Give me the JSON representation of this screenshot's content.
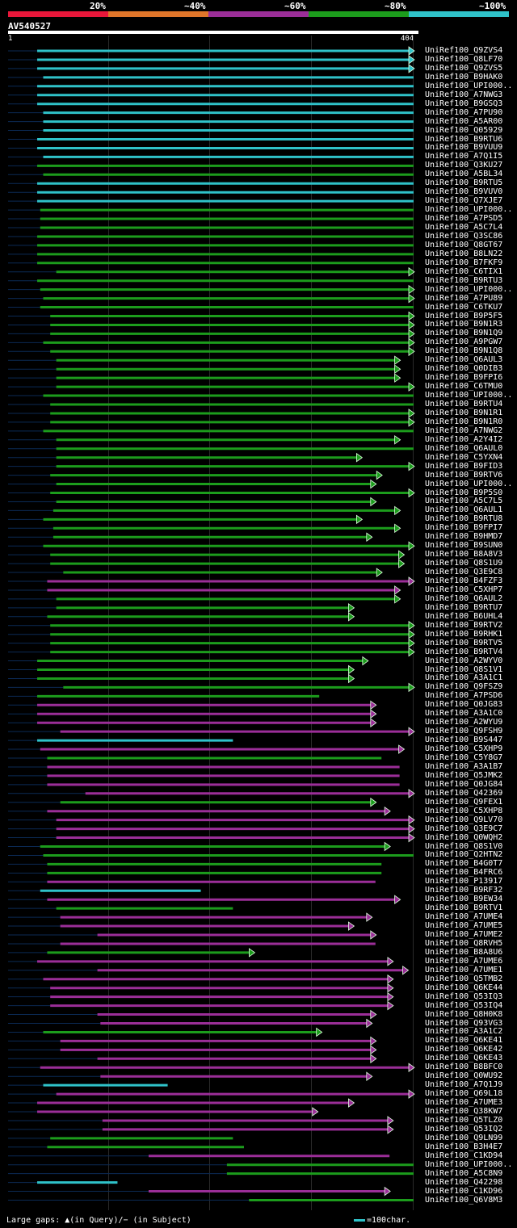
{
  "legend": {
    "segments": [
      {
        "label": "20%",
        "color": "#e8173a"
      },
      {
        "label": "~40%",
        "color": "#e0762a"
      },
      {
        "label": "~60%",
        "color": "#9b2e98"
      },
      {
        "label": "~80%",
        "color": "#1c9c1c"
      },
      {
        "label": "~100%",
        "color": "#2fc2c9"
      }
    ]
  },
  "query": {
    "name": "AV540527",
    "start": "1",
    "end": "404",
    "length": 404
  },
  "colors": {
    "g": "#1c9c1c",
    "p": "#9b2e98",
    "c": "#2fc2c9",
    "dim": "#0b2a55"
  },
  "footer": {
    "gaps": "Large gaps: ▲(in Query)/− (in Subject)",
    "scale": "=100char."
  },
  "hits": [
    {
      "id": "UniRef100_Q9ZVS4",
      "c": "c",
      "s": 29,
      "e": 404,
      "a": 1
    },
    {
      "id": "UniRef100_Q8LF70",
      "c": "c",
      "s": 29,
      "e": 404,
      "a": 1
    },
    {
      "id": "UniRef100_Q9ZVS5",
      "c": "c",
      "s": 29,
      "e": 404,
      "a": 1
    },
    {
      "id": "UniRef100_B9HAK0",
      "c": "c",
      "s": 35,
      "e": 404,
      "a": 0
    },
    {
      "id": "UniRef100_UPI000..",
      "c": "c",
      "s": 29,
      "e": 404,
      "a": 0
    },
    {
      "id": "UniRef100_A7NWG3",
      "c": "c",
      "s": 29,
      "e": 404,
      "a": 0
    },
    {
      "id": "UniRef100_B9GSQ3",
      "c": "c",
      "s": 29,
      "e": 404,
      "a": 0
    },
    {
      "id": "UniRef100_A7PU90",
      "c": "c",
      "s": 35,
      "e": 404,
      "a": 0
    },
    {
      "id": "UniRef100_A5AR00",
      "c": "c",
      "s": 35,
      "e": 404,
      "a": 0
    },
    {
      "id": "UniRef100_Q05929",
      "c": "c",
      "s": 35,
      "e": 404,
      "a": 0
    },
    {
      "id": "UniRef100_B9RTU6",
      "c": "c",
      "s": 29,
      "e": 404,
      "a": 0
    },
    {
      "id": "UniRef100_B9VUU9",
      "c": "c",
      "s": 29,
      "e": 404,
      "a": 0
    },
    {
      "id": "UniRef100_A7Q1I5",
      "c": "c",
      "s": 35,
      "e": 404,
      "a": 0
    },
    {
      "id": "UniRef100_Q3KU27",
      "c": "g",
      "s": 29,
      "e": 404,
      "a": 0
    },
    {
      "id": "UniRef100_A5BL34",
      "c": "g",
      "s": 35,
      "e": 404,
      "a": 0
    },
    {
      "id": "UniRef100_B9RTU5",
      "c": "c",
      "s": 29,
      "e": 404,
      "a": 0
    },
    {
      "id": "UniRef100_B9VUV0",
      "c": "c",
      "s": 29,
      "e": 404,
      "a": 0
    },
    {
      "id": "UniRef100_Q7XJE7",
      "c": "c",
      "s": 29,
      "e": 404,
      "a": 0
    },
    {
      "id": "UniRef100_UPI000..",
      "c": "g",
      "s": 32,
      "e": 404,
      "a": 0
    },
    {
      "id": "UniRef100_A7PSD5",
      "c": "g",
      "s": 32,
      "e": 404,
      "a": 0
    },
    {
      "id": "UniRef100_A5C7L4",
      "c": "g",
      "s": 32,
      "e": 404,
      "a": 0
    },
    {
      "id": "UniRef100_Q3SC86",
      "c": "g",
      "s": 29,
      "e": 404,
      "a": 0
    },
    {
      "id": "UniRef100_Q8GT67",
      "c": "g",
      "s": 29,
      "e": 404,
      "a": 0
    },
    {
      "id": "UniRef100_B8LN22",
      "c": "g",
      "s": 29,
      "e": 404,
      "a": 0
    },
    {
      "id": "UniRef100_B7FKF9",
      "c": "g",
      "s": 29,
      "e": 404,
      "a": 0
    },
    {
      "id": "UniRef100_C6TIX1",
      "c": "g",
      "s": 48,
      "e": 404,
      "a": 1
    },
    {
      "id": "UniRef100_B9RTU3",
      "c": "g",
      "s": 29,
      "e": 404,
      "a": 0
    },
    {
      "id": "UniRef100_UPI000..",
      "c": "g",
      "s": 32,
      "e": 404,
      "a": 1
    },
    {
      "id": "UniRef100_A7PU89",
      "c": "g",
      "s": 35,
      "e": 404,
      "a": 1
    },
    {
      "id": "UniRef100_C6TKU7",
      "c": "g",
      "s": 32,
      "e": 404,
      "a": 0
    },
    {
      "id": "UniRef100_B9P5F5",
      "c": "g",
      "s": 42,
      "e": 404,
      "a": 1
    },
    {
      "id": "UniRef100_B9N1R3",
      "c": "g",
      "s": 42,
      "e": 404,
      "a": 1
    },
    {
      "id": "UniRef100_B9N1Q9",
      "c": "g",
      "s": 42,
      "e": 404,
      "a": 1
    },
    {
      "id": "UniRef100_A9PGW7",
      "c": "g",
      "s": 35,
      "e": 404,
      "a": 1
    },
    {
      "id": "UniRef100_B9N1Q8",
      "c": "g",
      "s": 42,
      "e": 404,
      "a": 1
    },
    {
      "id": "UniRef100_Q6AUL3",
      "c": "g",
      "s": 48,
      "e": 390,
      "a": 1
    },
    {
      "id": "UniRef100_Q0DIB3",
      "c": "g",
      "s": 48,
      "e": 390,
      "a": 1
    },
    {
      "id": "UniRef100_B9FPI6",
      "c": "g",
      "s": 48,
      "e": 390,
      "a": 1
    },
    {
      "id": "UniRef100_C6TMU0",
      "c": "g",
      "s": 48,
      "e": 404,
      "a": 1
    },
    {
      "id": "UniRef100_UPI000..",
      "c": "g",
      "s": 35,
      "e": 404,
      "a": 0
    },
    {
      "id": "UniRef100_B9RTU4",
      "c": "g",
      "s": 42,
      "e": 404,
      "a": 0
    },
    {
      "id": "UniRef100_B9N1R1",
      "c": "g",
      "s": 42,
      "e": 404,
      "a": 1
    },
    {
      "id": "UniRef100_B9N1R0",
      "c": "g",
      "s": 42,
      "e": 404,
      "a": 1
    },
    {
      "id": "UniRef100_A7NWG2",
      "c": "g",
      "s": 35,
      "e": 404,
      "a": 0
    },
    {
      "id": "UniRef100_A2Y4I2",
      "c": "g",
      "s": 48,
      "e": 390,
      "a": 1
    },
    {
      "id": "UniRef100_Q6AUL0",
      "c": "g",
      "s": 48,
      "e": 404,
      "a": 0
    },
    {
      "id": "UniRef100_C5YXN4",
      "c": "g",
      "s": 48,
      "e": 352,
      "a": 1
    },
    {
      "id": "UniRef100_B9FID3",
      "c": "g",
      "s": 48,
      "e": 404,
      "a": 1
    },
    {
      "id": "UniRef100_B9RTV6",
      "c": "g",
      "s": 42,
      "e": 372,
      "a": 1
    },
    {
      "id": "UniRef100_UPI000..",
      "c": "g",
      "s": 48,
      "e": 366,
      "a": 1
    },
    {
      "id": "UniRef100_B9P5S0",
      "c": "g",
      "s": 42,
      "e": 404,
      "a": 1
    },
    {
      "id": "UniRef100_A5C7L5",
      "c": "g",
      "s": 48,
      "e": 366,
      "a": 1
    },
    {
      "id": "UniRef100_Q6AUL1",
      "c": "g",
      "s": 45,
      "e": 390,
      "a": 1
    },
    {
      "id": "UniRef100_B9RTU8",
      "c": "g",
      "s": 35,
      "e": 352,
      "a": 1
    },
    {
      "id": "UniRef100_B9FPI7",
      "c": "g",
      "s": 45,
      "e": 390,
      "a": 1
    },
    {
      "id": "UniRef100_B9HMD7",
      "c": "g",
      "s": 45,
      "e": 362,
      "a": 1
    },
    {
      "id": "UniRef100_B9SUN0",
      "c": "g",
      "s": 35,
      "e": 404,
      "a": 1
    },
    {
      "id": "UniRef100_B8A8V3",
      "c": "g",
      "s": 42,
      "e": 394,
      "a": 1
    },
    {
      "id": "UniRef100_Q8S1U9",
      "c": "g",
      "s": 42,
      "e": 394,
      "a": 1
    },
    {
      "id": "UniRef100_Q3E9C8",
      "c": "g",
      "s": 55,
      "e": 372,
      "a": 1
    },
    {
      "id": "UniRef100_B4FZF3",
      "c": "p",
      "s": 39,
      "e": 404,
      "a": 1
    },
    {
      "id": "UniRef100_C5XHP7",
      "c": "p",
      "s": 39,
      "e": 390,
      "a": 1
    },
    {
      "id": "UniRef100_Q6AUL2",
      "c": "g",
      "s": 48,
      "e": 390,
      "a": 1
    },
    {
      "id": "UniRef100_B9RTU7",
      "c": "g",
      "s": 48,
      "e": 344,
      "a": 1
    },
    {
      "id": "UniRef100_B6UHL4",
      "c": "g",
      "s": 39,
      "e": 344,
      "a": 1
    },
    {
      "id": "UniRef100_B9RTV2",
      "c": "g",
      "s": 42,
      "e": 404,
      "a": 1
    },
    {
      "id": "UniRef100_B9RHK1",
      "c": "g",
      "s": 42,
      "e": 404,
      "a": 1
    },
    {
      "id": "UniRef100_B9RTV5",
      "c": "g",
      "s": 42,
      "e": 404,
      "a": 1
    },
    {
      "id": "UniRef100_B9RTV4",
      "c": "g",
      "s": 42,
      "e": 404,
      "a": 1
    },
    {
      "id": "UniRef100_A2WYV0",
      "c": "g",
      "s": 29,
      "e": 358,
      "a": 1
    },
    {
      "id": "UniRef100_Q8S1V1",
      "c": "g",
      "s": 29,
      "e": 344,
      "a": 1
    },
    {
      "id": "UniRef100_A3A1C1",
      "c": "g",
      "s": 29,
      "e": 344,
      "a": 1
    },
    {
      "id": "UniRef100_Q9FSZ9",
      "c": "g",
      "s": 55,
      "e": 404,
      "a": 1
    },
    {
      "id": "UniRef100_A7PSD6",
      "c": "g",
      "s": 29,
      "e": 310,
      "a": 0
    },
    {
      "id": "UniRef100_Q0JG83",
      "c": "p",
      "s": 29,
      "e": 366,
      "a": 1
    },
    {
      "id": "UniRef100_A3A1C0",
      "c": "p",
      "s": 29,
      "e": 366,
      "a": 1
    },
    {
      "id": "UniRef100_A2WYU9",
      "c": "p",
      "s": 29,
      "e": 366,
      "a": 1
    },
    {
      "id": "UniRef100_Q9FSH9",
      "c": "p",
      "s": 52,
      "e": 404,
      "a": 1
    },
    {
      "id": "UniRef100_B9S447",
      "c": "c",
      "s": 29,
      "e": 224,
      "a": 0
    },
    {
      "id": "UniRef100_C5XHP9",
      "c": "p",
      "s": 32,
      "e": 394,
      "a": 1
    },
    {
      "id": "UniRef100_C5Y8G7",
      "c": "g",
      "s": 39,
      "e": 372,
      "a": 0
    },
    {
      "id": "UniRef100_A3A1B7",
      "c": "p",
      "s": 39,
      "e": 390,
      "a": 0
    },
    {
      "id": "UniRef100_Q5JMK2",
      "c": "p",
      "s": 39,
      "e": 390,
      "a": 0
    },
    {
      "id": "UniRef100_Q0JG84",
      "c": "p",
      "s": 39,
      "e": 390,
      "a": 0
    },
    {
      "id": "UniRef100_Q42369",
      "c": "p",
      "s": 77,
      "e": 404,
      "a": 1
    },
    {
      "id": "UniRef100_Q9FEX1",
      "c": "g",
      "s": 52,
      "e": 366,
      "a": 1
    },
    {
      "id": "UniRef100_C5XHP8",
      "c": "p",
      "s": 39,
      "e": 380,
      "a": 1
    },
    {
      "id": "UniRef100_Q9LV70",
      "c": "p",
      "s": 48,
      "e": 404,
      "a": 1
    },
    {
      "id": "UniRef100_Q3E9C7",
      "c": "p",
      "s": 48,
      "e": 404,
      "a": 1
    },
    {
      "id": "UniRef100_Q0WQH2",
      "c": "p",
      "s": 48,
      "e": 404,
      "a": 1
    },
    {
      "id": "UniRef100_Q8S1V0",
      "c": "g",
      "s": 32,
      "e": 380,
      "a": 1
    },
    {
      "id": "UniRef100_Q2HTN2",
      "c": "g",
      "s": 35,
      "e": 404,
      "a": 0
    },
    {
      "id": "UniRef100_B4G0T7",
      "c": "g",
      "s": 39,
      "e": 372,
      "a": 0
    },
    {
      "id": "UniRef100_B4FRC6",
      "c": "g",
      "s": 39,
      "e": 372,
      "a": 0
    },
    {
      "id": "UniRef100_P13917",
      "c": "p",
      "s": 39,
      "e": 366,
      "a": 0
    },
    {
      "id": "UniRef100_B9RF32",
      "c": "c",
      "s": 32,
      "e": 192,
      "a": 0
    },
    {
      "id": "UniRef100_B9EW34",
      "c": "p",
      "s": 39,
      "e": 390,
      "a": 1
    },
    {
      "id": "UniRef100_B9RTV1",
      "c": "g",
      "s": 48,
      "e": 224,
      "a": 0
    },
    {
      "id": "UniRef100_A7UME4",
      "c": "p",
      "s": 52,
      "e": 362,
      "a": 1
    },
    {
      "id": "UniRef100_A7UME5",
      "c": "p",
      "s": 52,
      "e": 344,
      "a": 1
    },
    {
      "id": "UniRef100_A7UME2",
      "c": "p",
      "s": 89,
      "e": 366,
      "a": 1
    },
    {
      "id": "UniRef100_Q8RVH5",
      "c": "p",
      "s": 52,
      "e": 366,
      "a": 0
    },
    {
      "id": "UniRef100_B8A8U6",
      "c": "g",
      "s": 39,
      "e": 245,
      "a": 1
    },
    {
      "id": "UniRef100_A7UME6",
      "c": "p",
      "s": 29,
      "e": 383,
      "a": 1
    },
    {
      "id": "UniRef100_A7UME1",
      "c": "p",
      "s": 89,
      "e": 398,
      "a": 1
    },
    {
      "id": "UniRef100_Q5TMB2",
      "c": "p",
      "s": 35,
      "e": 383,
      "a": 1
    },
    {
      "id": "UniRef100_Q6KE44",
      "c": "p",
      "s": 42,
      "e": 383,
      "a": 1
    },
    {
      "id": "UniRef100_Q53IQ3",
      "c": "p",
      "s": 42,
      "e": 383,
      "a": 1
    },
    {
      "id": "UniRef100_Q53IQ4",
      "c": "p",
      "s": 42,
      "e": 383,
      "a": 1
    },
    {
      "id": "UniRef100_Q8H0K8",
      "c": "p",
      "s": 89,
      "e": 366,
      "a": 1
    },
    {
      "id": "UniRef100_Q93VG3",
      "c": "p",
      "s": 92,
      "e": 362,
      "a": 1
    },
    {
      "id": "UniRef100_A3A1C2",
      "c": "g",
      "s": 35,
      "e": 312,
      "a": 1
    },
    {
      "id": "UniRef100_Q6KE41",
      "c": "p",
      "s": 52,
      "e": 366,
      "a": 1
    },
    {
      "id": "UniRef100_Q6KE42",
      "c": "p",
      "s": 52,
      "e": 366,
      "a": 1
    },
    {
      "id": "UniRef100_Q6KE43",
      "c": "p",
      "s": 89,
      "e": 366,
      "a": 1
    },
    {
      "id": "UniRef100_B8BFC0",
      "c": "p",
      "s": 32,
      "e": 404,
      "a": 1
    },
    {
      "id": "UniRef100_Q0WU92",
      "c": "p",
      "s": 92,
      "e": 362,
      "a": 1
    },
    {
      "id": "UniRef100_A7Q1J9",
      "c": "c",
      "s": 35,
      "e": 159,
      "a": 0
    },
    {
      "id": "UniRef100_Q69L18",
      "c": "p",
      "s": 48,
      "e": 404,
      "a": 1
    },
    {
      "id": "UniRef100_A7UME3",
      "c": "p",
      "s": 29,
      "e": 344,
      "a": 1
    },
    {
      "id": "UniRef100_Q38KW7",
      "c": "p",
      "s": 29,
      "e": 308,
      "a": 1
    },
    {
      "id": "UniRef100_Q5TLZ0",
      "c": "p",
      "s": 94,
      "e": 383,
      "a": 1
    },
    {
      "id": "UniRef100_Q53IQ2",
      "c": "p",
      "s": 94,
      "e": 383,
      "a": 1
    },
    {
      "id": "UniRef100_Q9LN99",
      "c": "g",
      "s": 42,
      "e": 224,
      "a": 0
    },
    {
      "id": "UniRef100_B3H4E7",
      "c": "g",
      "s": 39,
      "e": 235,
      "a": 0
    },
    {
      "id": "UniRef100_C1KD94",
      "c": "p",
      "s": 140,
      "e": 380,
      "a": 0
    },
    {
      "id": "UniRef100_UPI000..",
      "c": "g",
      "s": 218,
      "e": 404,
      "a": 0
    },
    {
      "id": "UniRef100_A5C8N9",
      "c": "g",
      "s": 218,
      "e": 404,
      "a": 0
    },
    {
      "id": "UniRef100_Q42298",
      "c": "c",
      "s": 29,
      "e": 109,
      "a": 0
    },
    {
      "id": "UniRef100_C1KD96",
      "c": "p",
      "s": 140,
      "e": 380,
      "a": 1
    },
    {
      "id": "UniRef100_Q6V8M3",
      "c": "g",
      "s": 240,
      "e": 404,
      "a": 0
    }
  ]
}
